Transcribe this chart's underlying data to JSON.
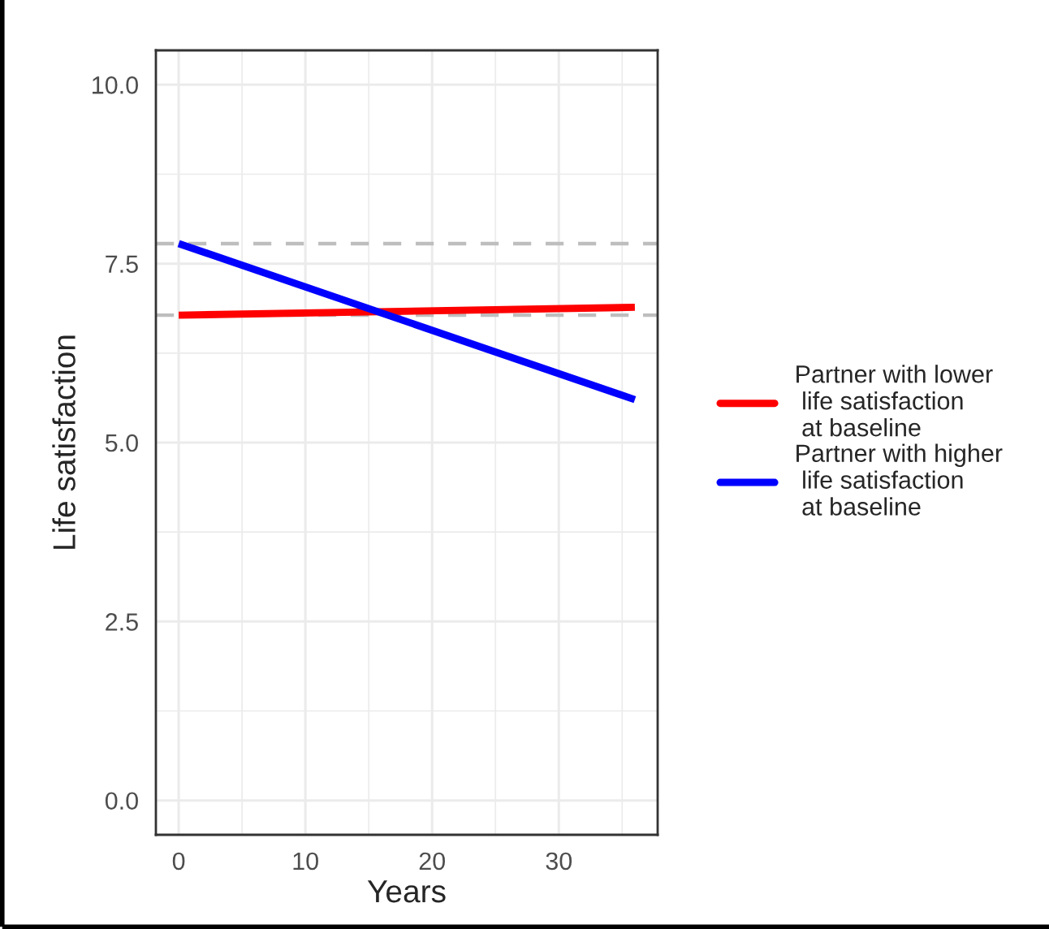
{
  "chart_data": {
    "type": "line",
    "xlabel": "Years",
    "ylabel": "Life satisfaction",
    "x": [
      0,
      36
    ],
    "series": [
      {
        "name": "Partner with lower\n life satisfaction\n at baseline",
        "color": "#ff0000",
        "values": [
          6.78,
          6.89
        ]
      },
      {
        "name": "Partner with higher\n life satisfaction\n at baseline",
        "color": "#0000ff",
        "values": [
          7.78,
          5.6
        ]
      }
    ],
    "ref_lines": [
      {
        "axis": "y",
        "value": 7.78,
        "color": "#bebebe",
        "line_style": "dashed"
      },
      {
        "axis": "y",
        "value": 6.78,
        "color": "#bebebe",
        "line_style": "dashed"
      }
    ],
    "xlim": [
      -1.8,
      37.8
    ],
    "ylim": [
      -0.48,
      10.48
    ],
    "xticks": [
      0,
      10,
      20,
      30
    ],
    "yticks": [
      {
        "value": 0,
        "label": "0.0"
      },
      {
        "value": 2.5,
        "label": "2.5"
      },
      {
        "value": 5,
        "label": "5.0"
      },
      {
        "value": 7.5,
        "label": "7.5"
      },
      {
        "value": 10,
        "label": "10.0"
      }
    ],
    "grid": true,
    "legend": "right",
    "line_style": "solid",
    "marker": "none"
  }
}
